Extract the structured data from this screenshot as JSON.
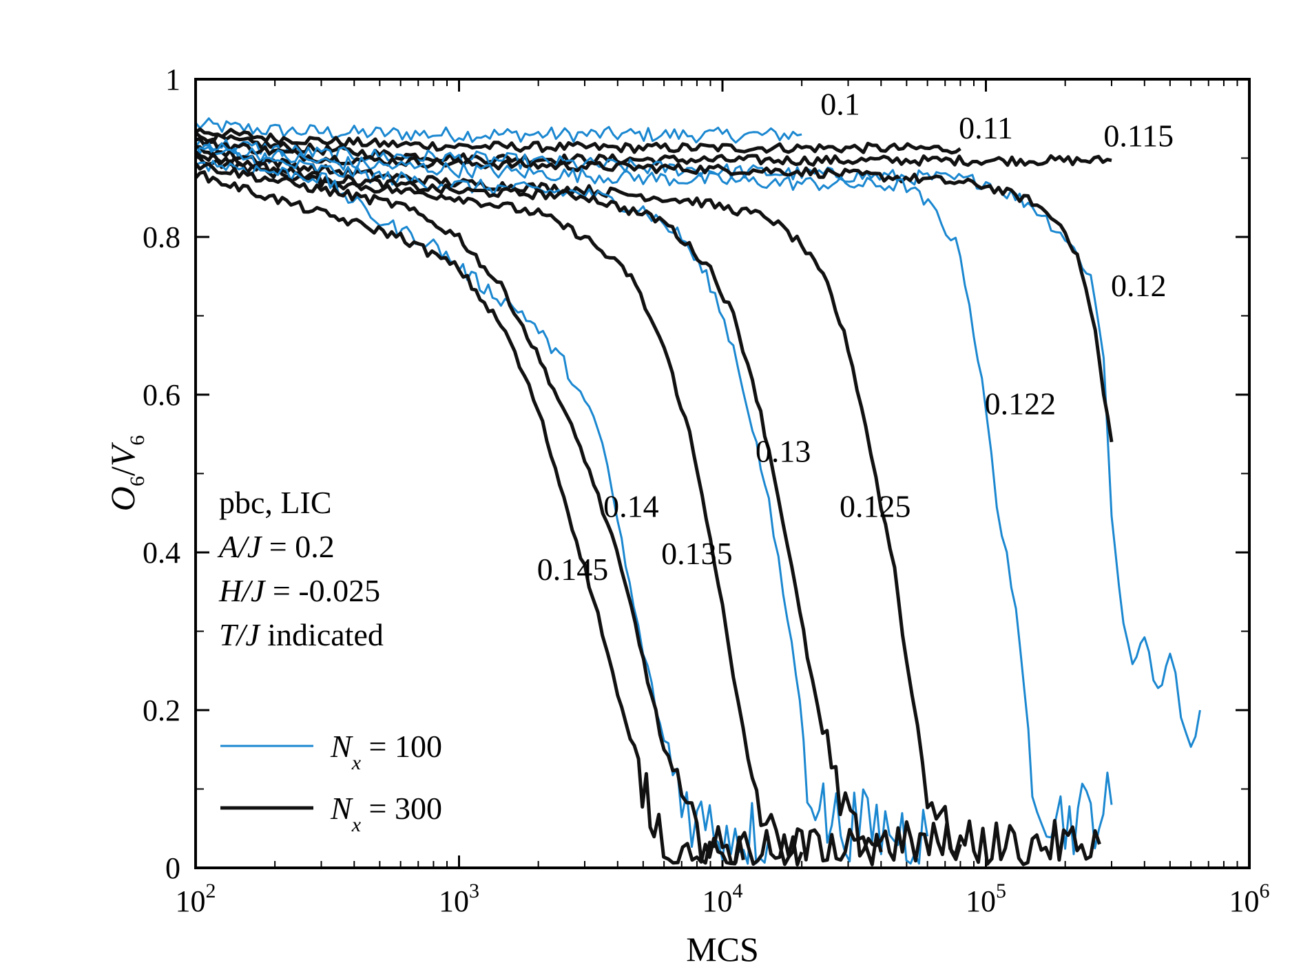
{
  "chart_data": {
    "type": "line",
    "xlabel": "MCS",
    "ylabel": {
      "main": "O",
      "sub1": "6",
      "slash": "/",
      "main2": "V",
      "sub2": "6"
    },
    "x_scale": "log",
    "xlim": [
      100,
      1000000
    ],
    "ylim": [
      0,
      1
    ],
    "x_ticks": [
      {
        "value": 100,
        "base": "10",
        "exp": "2"
      },
      {
        "value": 1000,
        "base": "10",
        "exp": "3"
      },
      {
        "value": 10000,
        "base": "10",
        "exp": "4"
      },
      {
        "value": 100000,
        "base": "10",
        "exp": "5"
      },
      {
        "value": 1000000,
        "base": "10",
        "exp": "6"
      }
    ],
    "y_ticks": [
      {
        "value": 0,
        "label": "0"
      },
      {
        "value": 0.2,
        "label": "0.2"
      },
      {
        "value": 0.4,
        "label": "0.4"
      },
      {
        "value": 0.6,
        "label": "0.6"
      },
      {
        "value": 0.8,
        "label": "0.8"
      },
      {
        "value": 1,
        "label": "1"
      }
    ],
    "annotation": [
      {
        "italic": "",
        "text": "pbc, LIC"
      },
      {
        "italic": "A/J",
        "text": " = 0.2"
      },
      {
        "italic": "H/J",
        "text": " = -0.025"
      },
      {
        "italic": "T/J",
        "text": " indicated"
      }
    ],
    "legend": [
      {
        "name": "N",
        "sub": "x",
        "value": " = 100",
        "color": "#1a87d0",
        "width": 3
      },
      {
        "name": "N",
        "sub": "x",
        "value": " = 300",
        "color": "#111111",
        "width": 5
      }
    ],
    "series": [
      {
        "name": "Nx=100, T/J=0.1",
        "size": 100,
        "T": "0.1",
        "color": "#1a87d0",
        "points": [
          [
            100,
            0.942
          ],
          [
            200,
            0.935
          ],
          [
            400,
            0.932
          ],
          [
            1000,
            0.93
          ],
          [
            4000,
            0.93
          ],
          [
            10000,
            0.929
          ],
          [
            20000,
            0.93
          ]
        ]
      },
      {
        "name": "Nx=300, T/J=0.11",
        "size": 300,
        "T": "0.11",
        "color": "#111111",
        "points": [
          [
            100,
            0.935
          ],
          [
            200,
            0.925
          ],
          [
            500,
            0.918
          ],
          [
            1000,
            0.915
          ],
          [
            5000,
            0.913
          ],
          [
            20000,
            0.913
          ],
          [
            80000,
            0.912
          ]
        ]
      },
      {
        "name": "Nx=300, T/J=0.115",
        "size": 300,
        "T": "0.115",
        "color": "#111111",
        "points": [
          [
            100,
            0.928
          ],
          [
            200,
            0.915
          ],
          [
            500,
            0.905
          ],
          [
            1000,
            0.9
          ],
          [
            5000,
            0.898
          ],
          [
            30000,
            0.897
          ],
          [
            100000,
            0.897
          ],
          [
            300000,
            0.897
          ]
        ]
      },
      {
        "name": "Nx=100, T/J=0.12",
        "size": 100,
        "T": "0.12",
        "color": "#1a87d0",
        "points": [
          [
            100,
            0.92
          ],
          [
            300,
            0.905
          ],
          [
            1000,
            0.9
          ],
          [
            5000,
            0.888
          ],
          [
            20000,
            0.88
          ],
          [
            60000,
            0.875
          ],
          [
            100000,
            0.87
          ],
          [
            150000,
            0.84
          ],
          [
            200000,
            0.8
          ],
          [
            250000,
            0.75
          ],
          [
            280000,
            0.65
          ],
          [
            300000,
            0.45
          ],
          [
            320000,
            0.35
          ],
          [
            360000,
            0.25
          ],
          [
            400000,
            0.3
          ],
          [
            450000,
            0.22
          ],
          [
            500000,
            0.28
          ],
          [
            550000,
            0.2
          ],
          [
            600000,
            0.15
          ],
          [
            650000,
            0.2
          ]
        ]
      },
      {
        "name": "Nx=300, T/J=0.12",
        "size": 300,
        "T": "0.12",
        "color": "#111111",
        "points": [
          [
            100,
            0.922
          ],
          [
            300,
            0.9
          ],
          [
            1000,
            0.893
          ],
          [
            5000,
            0.888
          ],
          [
            20000,
            0.883
          ],
          [
            60000,
            0.873
          ],
          [
            100000,
            0.865
          ],
          [
            150000,
            0.845
          ],
          [
            200000,
            0.81
          ],
          [
            230000,
            0.76
          ],
          [
            260000,
            0.68
          ],
          [
            280000,
            0.6
          ],
          [
            300000,
            0.54
          ]
        ]
      },
      {
        "name": "Nx=100, T/J=0.122",
        "size": 100,
        "T": "0.122",
        "color": "#1a87d0",
        "points": [
          [
            100,
            0.915
          ],
          [
            300,
            0.895
          ],
          [
            1000,
            0.885
          ],
          [
            5000,
            0.875
          ],
          [
            20000,
            0.868
          ],
          [
            50000,
            0.865
          ],
          [
            65000,
            0.83
          ],
          [
            80000,
            0.78
          ],
          [
            90000,
            0.68
          ],
          [
            100000,
            0.58
          ],
          [
            110000,
            0.46
          ],
          [
            120000,
            0.4
          ],
          [
            130000,
            0.32
          ],
          [
            140000,
            0.22
          ],
          [
            150000,
            0.13
          ],
          [
            170000,
            0.08
          ],
          [
            200000,
            0.06
          ],
          [
            250000,
            0.07
          ],
          [
            300000,
            0.08
          ]
        ]
      },
      {
        "name": "Nx=300, T/J=0.125",
        "size": 300,
        "T": "0.125",
        "color": "#111111",
        "points": [
          [
            100,
            0.912
          ],
          [
            300,
            0.885
          ],
          [
            1000,
            0.868
          ],
          [
            3000,
            0.86
          ],
          [
            8000,
            0.845
          ],
          [
            15000,
            0.825
          ],
          [
            20000,
            0.79
          ],
          [
            25000,
            0.74
          ],
          [
            30000,
            0.66
          ],
          [
            35000,
            0.56
          ],
          [
            40000,
            0.46
          ],
          [
            45000,
            0.38
          ],
          [
            50000,
            0.26
          ],
          [
            55000,
            0.18
          ],
          [
            60000,
            0.1
          ],
          [
            70000,
            0.05
          ],
          [
            80000,
            0.03
          ],
          [
            150000,
            0.03
          ],
          [
            270000,
            0.03
          ]
        ]
      },
      {
        "name": "Nx=100, T/J=0.13",
        "size": 100,
        "T": "0.13",
        "color": "#1a87d0",
        "points": [
          [
            100,
            0.91
          ],
          [
            300,
            0.885
          ],
          [
            1000,
            0.865
          ],
          [
            3000,
            0.855
          ],
          [
            5000,
            0.835
          ],
          [
            7000,
            0.8
          ],
          [
            9000,
            0.74
          ],
          [
            11000,
            0.66
          ],
          [
            13000,
            0.56
          ],
          [
            15000,
            0.46
          ],
          [
            17000,
            0.35
          ],
          [
            19000,
            0.25
          ],
          [
            21000,
            0.12
          ],
          [
            25000,
            0.06
          ],
          [
            40000,
            0.05
          ],
          [
            60000,
            0.04
          ]
        ]
      },
      {
        "name": "Nx=300, T/J=0.13",
        "size": 300,
        "T": "0.13",
        "color": "#111111",
        "points": [
          [
            100,
            0.905
          ],
          [
            300,
            0.875
          ],
          [
            1000,
            0.858
          ],
          [
            3000,
            0.852
          ],
          [
            6000,
            0.82
          ],
          [
            9000,
            0.76
          ],
          [
            11000,
            0.7
          ],
          [
            13000,
            0.62
          ],
          [
            15000,
            0.53
          ],
          [
            17000,
            0.44
          ],
          [
            19000,
            0.35
          ],
          [
            21000,
            0.27
          ],
          [
            24000,
            0.17
          ],
          [
            28000,
            0.08
          ],
          [
            32000,
            0.04
          ],
          [
            50000,
            0.03
          ],
          [
            80000,
            0.03
          ]
        ]
      },
      {
        "name": "Nx=300, T/J=0.135",
        "size": 300,
        "T": "0.135",
        "color": "#111111",
        "points": [
          [
            100,
            0.9
          ],
          [
            300,
            0.87
          ],
          [
            1000,
            0.85
          ],
          [
            2000,
            0.83
          ],
          [
            3000,
            0.8
          ],
          [
            4500,
            0.75
          ],
          [
            6000,
            0.66
          ],
          [
            7500,
            0.55
          ],
          [
            9000,
            0.42
          ],
          [
            10000,
            0.33
          ],
          [
            11000,
            0.24
          ],
          [
            12500,
            0.14
          ],
          [
            14000,
            0.07
          ],
          [
            16000,
            0.03
          ],
          [
            25000,
            0.02
          ],
          [
            40000,
            0.02
          ]
        ]
      },
      {
        "name": "Nx=100, T/J=0.14",
        "size": 100,
        "T": "0.14",
        "color": "#1a87d0",
        "points": [
          [
            100,
            0.895
          ],
          [
            300,
            0.875
          ],
          [
            500,
            0.82
          ],
          [
            800,
            0.79
          ],
          [
            1200,
            0.74
          ],
          [
            1800,
            0.7
          ],
          [
            2500,
            0.64
          ],
          [
            3000,
            0.59
          ],
          [
            3500,
            0.54
          ],
          [
            4000,
            0.44
          ],
          [
            4600,
            0.33
          ],
          [
            5200,
            0.25
          ],
          [
            6000,
            0.16
          ],
          [
            7000,
            0.1
          ],
          [
            8000,
            0.06
          ],
          [
            10000,
            0.05
          ],
          [
            15000,
            0.04
          ]
        ]
      },
      {
        "name": "Nx=300, T/J=0.14",
        "size": 300,
        "T": "0.14",
        "color": "#111111",
        "points": [
          [
            100,
            0.892
          ],
          [
            300,
            0.86
          ],
          [
            600,
            0.84
          ],
          [
            1000,
            0.8
          ],
          [
            1500,
            0.73
          ],
          [
            2200,
            0.62
          ],
          [
            3000,
            0.52
          ],
          [
            3800,
            0.42
          ],
          [
            4500,
            0.33
          ],
          [
            5200,
            0.24
          ],
          [
            6000,
            0.15
          ],
          [
            7000,
            0.08
          ],
          [
            8000,
            0.04
          ],
          [
            10000,
            0.02
          ],
          [
            20000,
            0.02
          ]
        ]
      },
      {
        "name": "Nx=300, T/J=0.145",
        "size": 300,
        "T": "0.145",
        "color": "#111111",
        "points": [
          [
            100,
            0.88
          ],
          [
            300,
            0.83
          ],
          [
            600,
            0.8
          ],
          [
            1000,
            0.76
          ],
          [
            1500,
            0.68
          ],
          [
            2000,
            0.58
          ],
          [
            2500,
            0.47
          ],
          [
            3000,
            0.38
          ],
          [
            3500,
            0.3
          ],
          [
            4000,
            0.22
          ],
          [
            4800,
            0.12
          ],
          [
            5500,
            0.06
          ],
          [
            6500,
            0.02
          ],
          [
            8000,
            0.01
          ],
          [
            12000,
            0.01
          ]
        ]
      }
    ],
    "curve_labels": [
      {
        "text": "0.1",
        "x": 28000,
        "y": 0.955
      },
      {
        "text": "0.11",
        "x": 100000,
        "y": 0.925
      },
      {
        "text": "0.115",
        "x": 380000,
        "y": 0.915
      },
      {
        "text": "0.12",
        "x": 380000,
        "y": 0.725
      },
      {
        "text": "0.122",
        "x": 135000,
        "y": 0.575
      },
      {
        "text": "0.125",
        "x": 38000,
        "y": 0.445
      },
      {
        "text": "0.13",
        "x": 17000,
        "y": 0.515
      },
      {
        "text": "0.135",
        "x": 8000,
        "y": 0.385
      },
      {
        "text": "0.14",
        "x": 4500,
        "y": 0.445
      },
      {
        "text": "0.145",
        "x": 2700,
        "y": 0.365
      }
    ]
  }
}
